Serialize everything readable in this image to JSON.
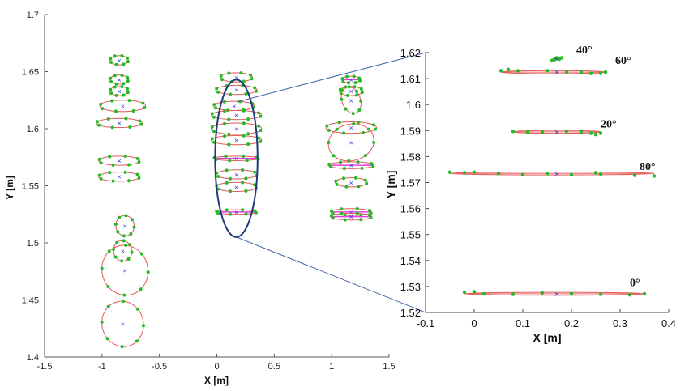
{
  "chart_data": [
    {
      "type": "scatter",
      "xlabel": "X [m]",
      "ylabel": "Y [m]",
      "xlim": [
        -1.5,
        1.5
      ],
      "ylim": [
        1.4,
        1.7
      ],
      "xticks": [
        "-1.5",
        "-1",
        "-0.5",
        "0",
        "0.5",
        "1",
        "1.5"
      ],
      "yticks": [
        "1.4",
        "1.45",
        "1.5",
        "1.55",
        "1.6",
        "1.65",
        "1.7"
      ],
      "grid": false,
      "colors": {
        "points": "#22bb22",
        "ellipse": "#e05a5a",
        "center": "#3a3ad0",
        "magenta": "#e040e0",
        "highlight": "#1f3a7a"
      },
      "clusters": [
        {
          "cx": -0.85,
          "cy": 1.66,
          "rx": 0.08,
          "ry": 0.004,
          "angle": 0
        },
        {
          "cx": -0.85,
          "cy": 1.643,
          "rx": 0.08,
          "ry": 0.004,
          "angle": 0
        },
        {
          "cx": -0.85,
          "cy": 1.633,
          "rx": 0.08,
          "ry": 0.004,
          "angle": 0
        },
        {
          "cx": -0.82,
          "cy": 1.62,
          "rx": 0.2,
          "ry": 0.005,
          "angle": 0
        },
        {
          "cx": -0.85,
          "cy": 1.605,
          "rx": 0.2,
          "ry": 0.004,
          "angle": 0
        },
        {
          "cx": -0.85,
          "cy": 1.572,
          "rx": 0.18,
          "ry": 0.004,
          "angle": 0
        },
        {
          "cx": -0.85,
          "cy": 1.558,
          "rx": 0.18,
          "ry": 0.004,
          "angle": 0
        },
        {
          "cx": -0.8,
          "cy": 1.515,
          "rx": 0.08,
          "ry": 0.009,
          "angle": 10
        },
        {
          "cx": -0.82,
          "cy": 1.493,
          "rx": 0.08,
          "ry": 0.009,
          "angle": 10
        },
        {
          "cx": -0.8,
          "cy": 1.476,
          "rx": 0.2,
          "ry": 0.022,
          "angle": 14
        },
        {
          "cx": -0.82,
          "cy": 1.429,
          "rx": 0.18,
          "ry": 0.02,
          "angle": 14
        },
        {
          "cx": 0.17,
          "cy": 1.645,
          "rx": 0.14,
          "ry": 0.004,
          "angle": 0
        },
        {
          "cx": 0.17,
          "cy": 1.634,
          "rx": 0.18,
          "ry": 0.004,
          "angle": 0
        },
        {
          "cx": 0.15,
          "cy": 1.62,
          "rx": 0.18,
          "ry": 0.004,
          "angle": 0
        },
        {
          "cx": 0.17,
          "cy": 1.612,
          "rx": 0.22,
          "ry": 0.004,
          "angle": 0
        },
        {
          "cx": 0.17,
          "cy": 1.6,
          "rx": 0.22,
          "ry": 0.005,
          "angle": 0
        },
        {
          "cx": 0.17,
          "cy": 1.59,
          "rx": 0.22,
          "ry": 0.004,
          "angle": 0
        },
        {
          "cx": 0.17,
          "cy": 1.574,
          "rx": 0.2,
          "ry": 0.002,
          "angle": 0
        },
        {
          "cx": 0.17,
          "cy": 1.56,
          "rx": 0.18,
          "ry": 0.004,
          "angle": 0
        },
        {
          "cx": 0.17,
          "cy": 1.549,
          "rx": 0.18,
          "ry": 0.004,
          "angle": 0
        },
        {
          "cx": 0.17,
          "cy": 1.527,
          "rx": 0.18,
          "ry": 0.002,
          "angle": 0
        },
        {
          "cx": 1.17,
          "cy": 1.643,
          "rx": 0.08,
          "ry": 0.003,
          "angle": 0
        },
        {
          "cx": 1.17,
          "cy": 1.633,
          "rx": 0.1,
          "ry": 0.004,
          "angle": 0
        },
        {
          "cx": 1.17,
          "cy": 1.625,
          "rx": 0.08,
          "ry": 0.012,
          "angle": 20
        },
        {
          "cx": 1.17,
          "cy": 1.601,
          "rx": 0.22,
          "ry": 0.005,
          "angle": 0
        },
        {
          "cx": 1.17,
          "cy": 1.588,
          "rx": 0.2,
          "ry": 0.016,
          "angle": 14
        },
        {
          "cx": 1.17,
          "cy": 1.568,
          "rx": 0.2,
          "ry": 0.003,
          "angle": 0
        },
        {
          "cx": 1.17,
          "cy": 1.553,
          "rx": 0.14,
          "ry": 0.004,
          "angle": 0
        },
        {
          "cx": 1.17,
          "cy": 1.527,
          "rx": 0.18,
          "ry": 0.003,
          "angle": 0
        },
        {
          "cx": 1.17,
          "cy": 1.523,
          "rx": 0.18,
          "ry": 0.003,
          "angle": 0
        }
      ],
      "highlight_ellipse": {
        "cx": 0.17,
        "cy": 1.574,
        "rx": 0.37,
        "ry": 0.069
      }
    },
    {
      "type": "scatter",
      "xlabel": "X [m]",
      "ylabel": "Y [m]",
      "xlim": [
        -0.1,
        0.4
      ],
      "ylim": [
        1.52,
        1.62
      ],
      "xticks": [
        "-0.1",
        "0",
        "0.1",
        "0.2",
        "0.3",
        "0.4"
      ],
      "yticks": [
        "1.52",
        "1.53",
        "1.54",
        "1.55",
        "1.56",
        "1.57",
        "1.58",
        "1.59",
        "1.6",
        "1.61",
        "1.62"
      ],
      "grid": false,
      "series": [
        {
          "name": "40°",
          "center": [
            0.17,
            1.6175
          ],
          "x_range": [
            0.16,
            0.18
          ],
          "label_at": [
            0.21,
            1.619
          ],
          "points": [
            [
              0.16,
              1.617
            ],
            [
              0.165,
              1.6175
            ],
            [
              0.17,
              1.618
            ],
            [
              0.175,
              1.6175
            ],
            [
              0.18,
              1.618
            ]
          ]
        },
        {
          "name": "60°",
          "center": [
            0.17,
            1.6125
          ],
          "x_range": [
            0.055,
            0.27
          ],
          "label_at": [
            0.29,
            1.615
          ],
          "points": [
            [
              0.055,
              1.613
            ],
            [
              0.07,
              1.6135
            ],
            [
              0.09,
              1.613
            ],
            [
              0.15,
              1.613
            ],
            [
              0.19,
              1.6125
            ],
            [
              0.22,
              1.6125
            ],
            [
              0.24,
              1.612
            ],
            [
              0.26,
              1.612
            ],
            [
              0.27,
              1.6125
            ]
          ]
        },
        {
          "name": "20°",
          "center": [
            0.17,
            1.5895
          ],
          "x_range": [
            0.08,
            0.26
          ],
          "label_at": [
            0.26,
            1.5905
          ],
          "points": [
            [
              0.08,
              1.5897
            ],
            [
              0.11,
              1.5895
            ],
            [
              0.14,
              1.5895
            ],
            [
              0.19,
              1.5897
            ],
            [
              0.22,
              1.5895
            ],
            [
              0.24,
              1.589
            ],
            [
              0.25,
              1.5885
            ],
            [
              0.26,
              1.589
            ]
          ]
        },
        {
          "name": "80°",
          "center": [
            0.17,
            1.5735
          ],
          "x_range": [
            -0.05,
            0.37
          ],
          "label_at": [
            0.34,
            1.5742
          ],
          "points": [
            [
              -0.05,
              1.574
            ],
            [
              -0.02,
              1.5738
            ],
            [
              0.0,
              1.574
            ],
            [
              0.05,
              1.5735
            ],
            [
              0.1,
              1.573
            ],
            [
              0.15,
              1.5735
            ],
            [
              0.2,
              1.573
            ],
            [
              0.25,
              1.5738
            ],
            [
              0.26,
              1.5732
            ],
            [
              0.33,
              1.5728
            ],
            [
              0.37,
              1.5725
            ]
          ]
        },
        {
          "name": "0°",
          "center": [
            0.17,
            1.5272
          ],
          "x_range": [
            -0.02,
            0.35
          ],
          "label_at": [
            0.32,
            1.5295
          ],
          "points": [
            [
              -0.02,
              1.5278
            ],
            [
              0.0,
              1.528
            ],
            [
              0.02,
              1.5272
            ],
            [
              0.08,
              1.527
            ],
            [
              0.14,
              1.5275
            ],
            [
              0.2,
              1.5272
            ],
            [
              0.26,
              1.527
            ],
            [
              0.32,
              1.5268
            ],
            [
              0.35,
              1.5272
            ]
          ]
        }
      ]
    }
  ]
}
